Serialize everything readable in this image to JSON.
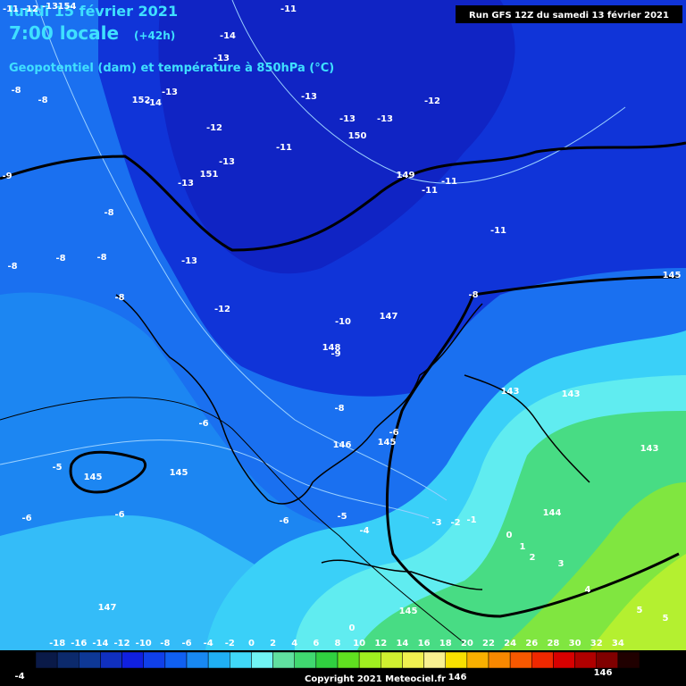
{
  "header": {
    "date": "lundi 15 février 2021",
    "time": "7:00 locale",
    "lead": "(+42h)",
    "subtitle": "Geopotentiel (dam) et température à 850hPa (°C)",
    "run": "Run GFS 12Z du samedi 13 février 2021"
  },
  "legend": {
    "ticks": [
      -18,
      -16,
      -14,
      -12,
      -10,
      -8,
      -6,
      -4,
      -2,
      0,
      2,
      4,
      6,
      8,
      10,
      12,
      14,
      16,
      18,
      20,
      22,
      24,
      26,
      28,
      30,
      32,
      34
    ],
    "colors": [
      "#0a1a48",
      "#0c2a6c",
      "#0e3896",
      "#1030c0",
      "#1020e0",
      "#1040ea",
      "#1060f2",
      "#1888f2",
      "#20b0f4",
      "#40d8f8",
      "#70f4f4",
      "#60e0a0",
      "#40d870",
      "#30d040",
      "#60e020",
      "#a0f020",
      "#d0f030",
      "#f0f050",
      "#f8f090",
      "#f8e000",
      "#f8b000",
      "#f88800",
      "#f85800",
      "#f02800",
      "#d80000",
      "#b00000",
      "#800000",
      "#200000"
    ]
  },
  "copyright": "Copyright 2021 Meteociel.fr",
  "labels": [
    -11,
    -12,
    -13,
    154,
    -11,
    -14,
    -13,
    -8,
    -8,
    152,
    -14,
    -13,
    -13,
    -12,
    -13,
    -13,
    150,
    -12,
    -11,
    -13,
    151,
    -13,
    149,
    -11,
    -11,
    -9,
    -8,
    -11,
    -8,
    -8,
    -8,
    -13,
    -8,
    -8,
    145,
    -12,
    -10,
    147,
    148,
    -9,
    143,
    143,
    -8,
    -6,
    -6,
    146,
    145,
    -5,
    145,
    145,
    143,
    -6,
    -6,
    -5,
    -6,
    -3,
    -2,
    -1,
    -4,
    0,
    1,
    2,
    3,
    144,
    4,
    147,
    145,
    5,
    5,
    0,
    -4,
    146,
    146
  ]
}
